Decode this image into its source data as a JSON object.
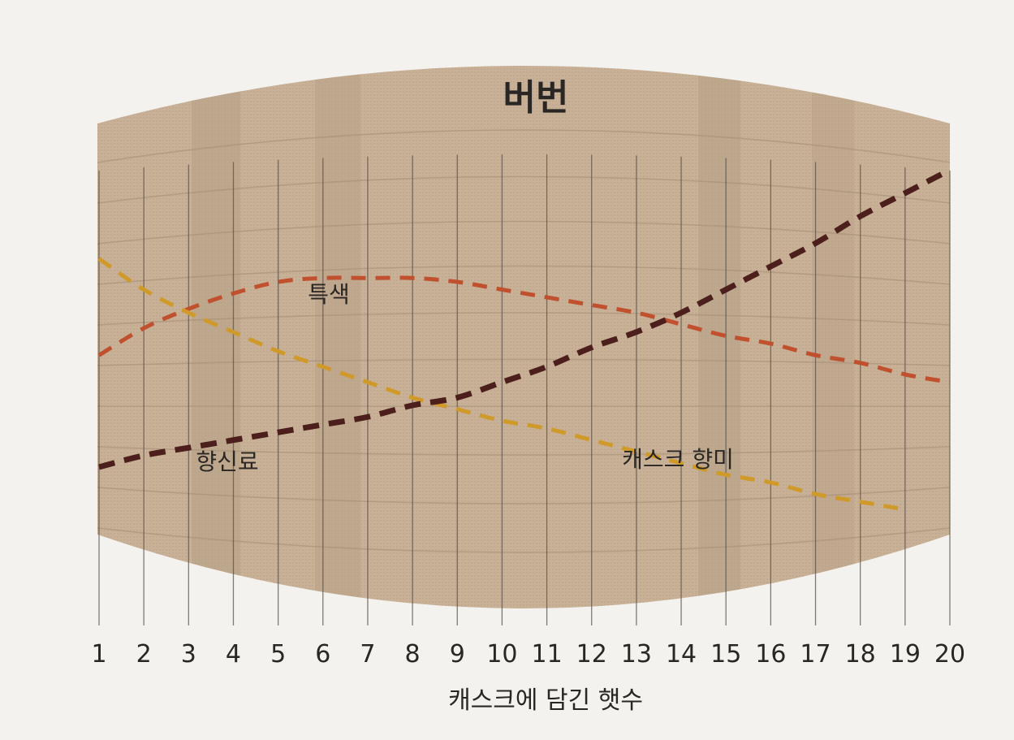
{
  "chart_data": {
    "type": "line",
    "title": "버번",
    "xlabel": "캐스크에 담긴 햇수",
    "ylabel": "",
    "x": [
      1,
      2,
      3,
      4,
      5,
      6,
      7,
      8,
      9,
      10,
      11,
      12,
      13,
      14,
      15,
      16,
      17,
      18,
      19,
      20
    ],
    "ylim": [
      0,
      10
    ],
    "grid": true,
    "legend": "inline labels",
    "series": [
      {
        "name": "특색",
        "color": "#c0502e",
        "x": [
          1,
          2,
          3,
          4,
          5,
          6,
          7,
          8,
          9,
          10,
          11,
          12,
          13,
          14,
          15,
          16,
          17,
          18,
          19,
          20
        ],
        "values": [
          4.9,
          5.6,
          6.1,
          6.5,
          6.8,
          6.9,
          6.9,
          6.9,
          6.8,
          6.6,
          6.4,
          6.2,
          6.0,
          5.7,
          5.4,
          5.2,
          4.9,
          4.7,
          4.4,
          4.2
        ],
        "label": "특색"
      },
      {
        "name": "캐스크 향미",
        "color": "#cf9a2a",
        "x": [
          1,
          2,
          3,
          4,
          5,
          6,
          7,
          8,
          9,
          10,
          11,
          12,
          13,
          14,
          15,
          16,
          17,
          18,
          19
        ],
        "values": [
          7.4,
          6.6,
          6.0,
          5.5,
          5.0,
          4.6,
          4.2,
          3.8,
          3.5,
          3.2,
          3.0,
          2.7,
          2.4,
          2.1,
          1.8,
          1.6,
          1.3,
          1.1,
          0.9
        ],
        "label": "캐스크 향미"
      },
      {
        "name": "향신료",
        "color": "#4d1f1c",
        "x": [
          1,
          2,
          3,
          4,
          5,
          6,
          7,
          8,
          9,
          10,
          11,
          12,
          13,
          14,
          15,
          16,
          17,
          18,
          19,
          20
        ],
        "values": [
          2.0,
          2.3,
          2.5,
          2.7,
          2.9,
          3.1,
          3.3,
          3.6,
          3.8,
          4.2,
          4.6,
          5.1,
          5.5,
          6.0,
          6.6,
          7.2,
          7.8,
          8.5,
          9.1,
          9.7
        ],
        "label": "향신료"
      }
    ]
  }
}
